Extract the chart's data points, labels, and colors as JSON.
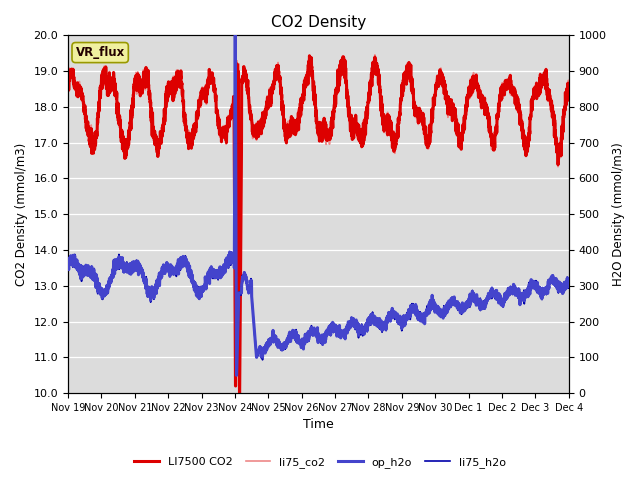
{
  "title": "CO2 Density",
  "xlabel": "Time",
  "ylabel_left": "CO2 Density (mmol/m3)",
  "ylabel_right": "H2O Density (mmol/m3)",
  "ylim_left": [
    10.0,
    20.0
  ],
  "ylim_right": [
    0,
    1000
  ],
  "bg_color": "#dcdcdc",
  "label_box_text": "VR_flux",
  "legend_items": [
    {
      "label": "LI7500 CO2",
      "color": "#dd0000",
      "lw": 2.2
    },
    {
      "label": "li75_co2",
      "color": "#ee8888",
      "lw": 1.2
    },
    {
      "label": "op_h2o",
      "color": "#4444cc",
      "lw": 2.2
    },
    {
      "label": "li75_h2o",
      "color": "#0000aa",
      "lw": 1.2
    }
  ],
  "xtick_labels": [
    "Nov 19",
    "Nov 20",
    "Nov 21",
    "Nov 22",
    "Nov 23",
    "Nov 24",
    "Nov 25",
    "Nov 26",
    "Nov 27",
    "Nov 28",
    "Nov 29",
    "Nov 30",
    "Dec 1",
    "Dec 2",
    "Dec 3",
    "Dec 4"
  ],
  "ytick_left": [
    10.0,
    11.0,
    12.0,
    13.0,
    14.0,
    15.0,
    16.0,
    17.0,
    18.0,
    19.0,
    20.0
  ],
  "ytick_right": [
    0,
    100,
    200,
    300,
    400,
    500,
    600,
    700,
    800,
    900,
    1000
  ]
}
